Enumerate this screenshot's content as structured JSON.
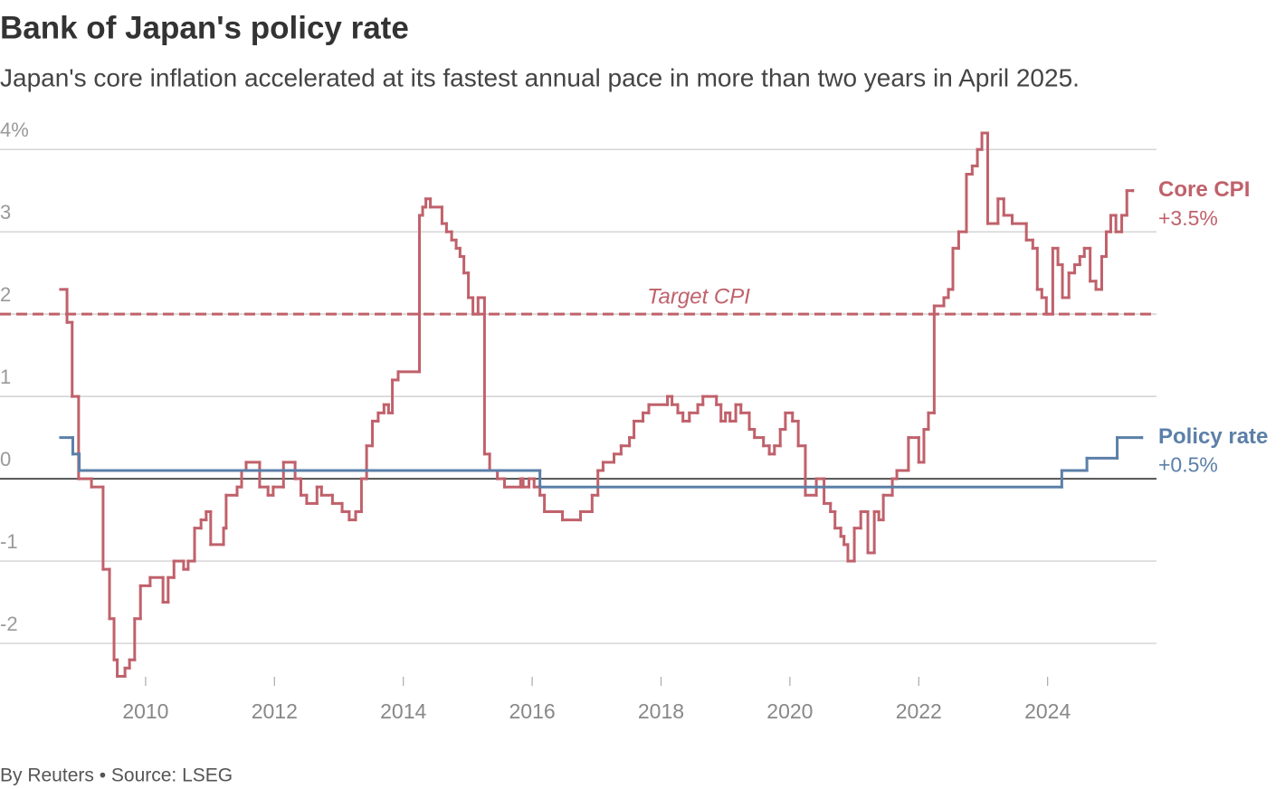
{
  "chart_data": {
    "type": "step",
    "title": "Bank of Japan's policy rate",
    "subtitle": "Japan's core inflation accelerated at its fastest annual pace in more than two years in April 2025.",
    "source": "By Reuters • Source: LSEG",
    "xlim": [
      2007.74,
      2025.69
    ],
    "xticks": [
      2010,
      2012,
      2014,
      2016,
      2018,
      2020,
      2022,
      2024
    ],
    "ylim": [
      -2.45,
      4.2
    ],
    "yticks": [
      {
        "value": 4,
        "label": "4%"
      },
      3,
      2,
      1,
      0,
      -1,
      -2
    ],
    "grid": true,
    "target": {
      "value": 2,
      "label": "Target CPI",
      "color": "#c0616b"
    },
    "series": [
      {
        "name": "Core CPI",
        "color": "#c0616b",
        "end_label": "+3.5%",
        "x": [
          2008.68,
          2008.78,
          2008.86,
          2008.96,
          2009.16,
          2009.34,
          2009.44,
          2009.51,
          2009.56,
          2009.68,
          2009.75,
          2009.83,
          2009.92,
          2010.07,
          2010.27,
          2010.35,
          2010.44,
          2010.59,
          2010.66,
          2010.76,
          2010.86,
          2010.94,
          2011.01,
          2011.21,
          2011.25,
          2011.42,
          2011.49,
          2011.56,
          2011.77,
          2011.9,
          2011.98,
          2012.14,
          2012.32,
          2012.41,
          2012.5,
          2012.66,
          2012.73,
          2012.9,
          2013.05,
          2013.16,
          2013.26,
          2013.35,
          2013.43,
          2013.52,
          2013.61,
          2013.7,
          2013.77,
          2013.83,
          2013.92,
          2014.25,
          2014.3,
          2014.35,
          2014.42,
          2014.6,
          2014.67,
          2014.75,
          2014.82,
          2014.88,
          2014.94,
          2015.01,
          2015.08,
          2015.16,
          2015.26,
          2015.34,
          2015.46,
          2015.57,
          2015.82,
          2015.86,
          2015.95,
          2016.03,
          2016.12,
          2016.19,
          2016.47,
          2016.75,
          2016.93,
          2017.02,
          2017.1,
          2017.27,
          2017.38,
          2017.51,
          2017.58,
          2017.72,
          2017.81,
          2018.1,
          2018.17,
          2018.26,
          2018.34,
          2018.44,
          2018.57,
          2018.65,
          2018.86,
          2018.93,
          2019.0,
          2019.07,
          2019.16,
          2019.24,
          2019.37,
          2019.45,
          2019.59,
          2019.68,
          2019.76,
          2019.85,
          2019.93,
          2020.04,
          2020.13,
          2020.24,
          2020.41,
          2020.53,
          2020.63,
          2020.7,
          2020.79,
          2020.84,
          2020.9,
          2021.0,
          2021.1,
          2021.21,
          2021.31,
          2021.38,
          2021.45,
          2021.59,
          2021.66,
          2021.84,
          2022.0,
          2022.08,
          2022.15,
          2022.24,
          2022.39,
          2022.46,
          2022.53,
          2022.62,
          2022.74,
          2022.83,
          2022.91,
          2022.98,
          2023.07,
          2023.23,
          2023.32,
          2023.45,
          2023.67,
          2023.77,
          2023.84,
          2023.91,
          2023.98,
          2024.08,
          2024.16,
          2024.23,
          2024.33,
          2024.42,
          2024.5,
          2024.57,
          2024.66,
          2024.75,
          2024.84,
          2024.91,
          2024.98,
          2025.06,
          2025.15,
          2025.23,
          2025.32
        ],
        "values": [
          2.3,
          1.9,
          1.0,
          0.0,
          -0.1,
          -1.1,
          -1.7,
          -2.2,
          -2.4,
          -2.3,
          -2.2,
          -1.7,
          -1.3,
          -1.2,
          -1.5,
          -1.2,
          -1.0,
          -1.1,
          -1.0,
          -0.6,
          -0.5,
          -0.4,
          -0.8,
          -0.6,
          -0.2,
          -0.1,
          0.1,
          0.2,
          -0.1,
          -0.2,
          -0.1,
          0.2,
          0.0,
          -0.2,
          -0.3,
          -0.1,
          -0.2,
          -0.3,
          -0.4,
          -0.5,
          -0.4,
          0.0,
          0.4,
          0.7,
          0.8,
          0.9,
          0.8,
          1.2,
          1.3,
          3.2,
          3.3,
          3.4,
          3.3,
          3.1,
          3.0,
          2.9,
          2.8,
          2.7,
          2.5,
          2.2,
          2.0,
          2.2,
          0.3,
          0.1,
          0.0,
          -0.1,
          0.0,
          -0.1,
          0.0,
          -0.1,
          -0.2,
          -0.4,
          -0.5,
          -0.4,
          -0.2,
          0.1,
          0.2,
          0.3,
          0.4,
          0.5,
          0.7,
          0.8,
          0.9,
          1.0,
          0.9,
          0.8,
          0.7,
          0.8,
          0.9,
          1.0,
          0.9,
          0.7,
          0.8,
          0.7,
          0.9,
          0.8,
          0.6,
          0.5,
          0.4,
          0.3,
          0.4,
          0.6,
          0.8,
          0.7,
          0.4,
          -0.2,
          0.0,
          -0.3,
          -0.4,
          -0.6,
          -0.7,
          -0.8,
          -1.0,
          -0.6,
          -0.4,
          -0.9,
          -0.4,
          -0.5,
          -0.2,
          0.0,
          0.1,
          0.5,
          0.2,
          0.6,
          0.8,
          2.1,
          2.2,
          2.3,
          2.8,
          3.0,
          3.7,
          3.8,
          4.0,
          4.2,
          3.1,
          3.4,
          3.2,
          3.1,
          2.9,
          2.8,
          2.3,
          2.2,
          2.0,
          2.8,
          2.6,
          2.2,
          2.5,
          2.6,
          2.7,
          2.8,
          2.4,
          2.3,
          2.7,
          3.0,
          3.2,
          3.0,
          3.2,
          3.5,
          3.5
        ]
      },
      {
        "name": "Policy rate",
        "color": "#5b7fa8",
        "end_label": "+0.5%",
        "x": [
          2008.68,
          2008.87,
          2008.97,
          2016.12,
          2024.22,
          2024.61,
          2025.08,
          2025.46
        ],
        "values": [
          0.5,
          0.3,
          0.1,
          -0.1,
          0.1,
          0.25,
          0.5,
          0.5
        ]
      }
    ]
  }
}
